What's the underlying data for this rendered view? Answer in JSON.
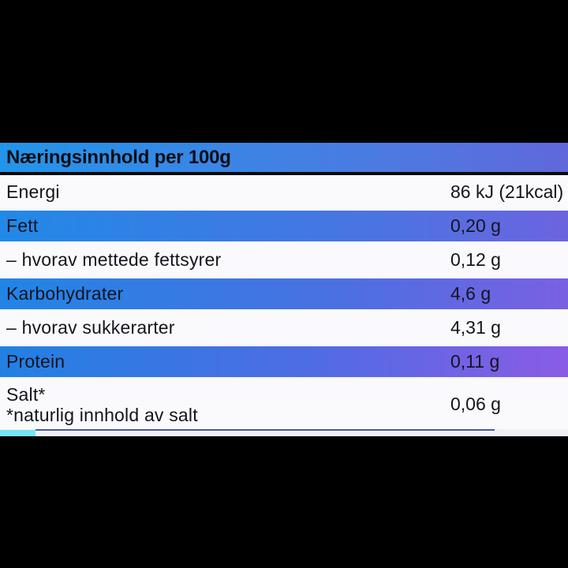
{
  "table": {
    "title": "Næringsinnhold per 100g",
    "rows": [
      {
        "label": "Energi",
        "value": "86 kJ (21kcal)"
      },
      {
        "label": "Fett",
        "value": "0,20 g"
      },
      {
        "label": "– hvorav mettede fettsyrer",
        "value": "0,12 g"
      },
      {
        "label": "Karbohydrater",
        "value": "4,6 g"
      },
      {
        "label": "– hvorav sukkerarter",
        "value": "4,31 g"
      },
      {
        "label": "Protein",
        "value": "0,11 g"
      },
      {
        "label": "Salt*",
        "note": "*naturlig innhold av salt",
        "value": "0,06 g"
      }
    ],
    "colors": {
      "gradient_left_blue": "#2189E7",
      "gradient_right_purple_top": "#6168D9",
      "gradient_right_purple_bottom": "#8A5CE5",
      "light_row_background": "#FAFAFC",
      "text": "#14141E",
      "page_background": "#000000",
      "bottom_cyan_accent": "#76E4F5",
      "bottom_navy_line": "#4C5AA0"
    }
  }
}
